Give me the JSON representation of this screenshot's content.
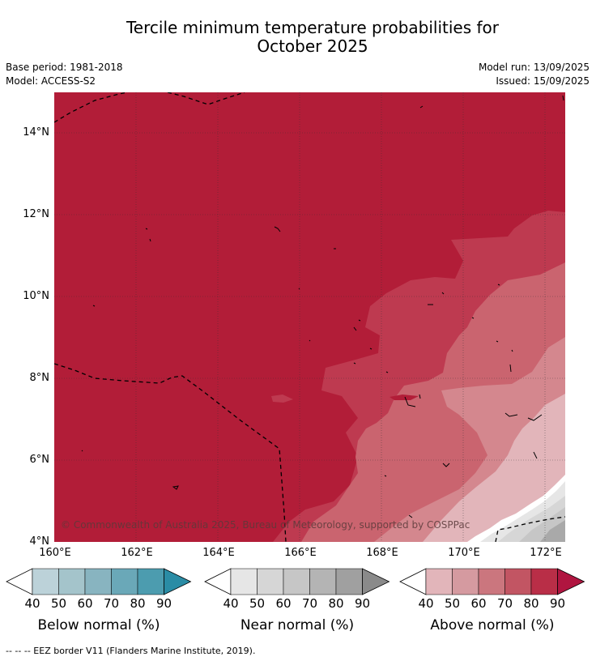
{
  "title_line1": "Tercile minimum temperature probabilities for",
  "title_line2": "October 2025",
  "meta": {
    "base_period": "Base period: 1981-2018",
    "model": "Model: ACCESS-S2",
    "model_run": "Model run: 13/09/2025",
    "issued": "Issued: 15/09/2025"
  },
  "map": {
    "lon_range": [
      160,
      172.5
    ],
    "lat_range": [
      4,
      15
    ],
    "lat_ticks": [
      "14°N",
      "12°N",
      "10°N",
      "8°N",
      "6°N",
      "4°N"
    ],
    "lon_ticks": [
      "160°E",
      "162°E",
      "164°E",
      "166°E",
      "168°E",
      "170°E",
      "172°E"
    ],
    "copyright": "© Commonwealth of Australia 2025, Bureau of Meteorology, supported by COSPPac",
    "colors": {
      "above_90": "#b21d38",
      "above_80": "#be3a50",
      "above_70": "#ca646f",
      "above_60": "#d4878e",
      "near_60": "#c6c6c6",
      "near_50": "#d6d6d6",
      "near_40": "#e6e6e6",
      "near_70": "#a9a9a9"
    }
  },
  "colorbars": [
    {
      "title": "Below normal (%)",
      "ticks": [
        "40",
        "50",
        "60",
        "70",
        "80",
        "90"
      ],
      "colors": [
        "#bcd2d9",
        "#a4c4cb",
        "#88b4c0",
        "#6aa8b8",
        "#4c9caf",
        "#2a8ca5"
      ]
    },
    {
      "title": "Near normal (%)",
      "ticks": [
        "40",
        "50",
        "60",
        "70",
        "80",
        "90"
      ],
      "colors": [
        "#e6e6e6",
        "#d6d6d6",
        "#c6c6c6",
        "#b4b4b4",
        "#a0a0a0",
        "#8a8a8a"
      ]
    },
    {
      "title": "Above normal (%)",
      "ticks": [
        "40",
        "50",
        "60",
        "70",
        "80",
        "90"
      ],
      "colors": [
        "#e2b5ba",
        "#d59aa0",
        "#cb767e",
        "#c25563",
        "#b92e47",
        "#b01540"
      ]
    }
  ],
  "footnote": "--  --  -- EEZ border V11 (Flanders Marine Institute, 2019)."
}
